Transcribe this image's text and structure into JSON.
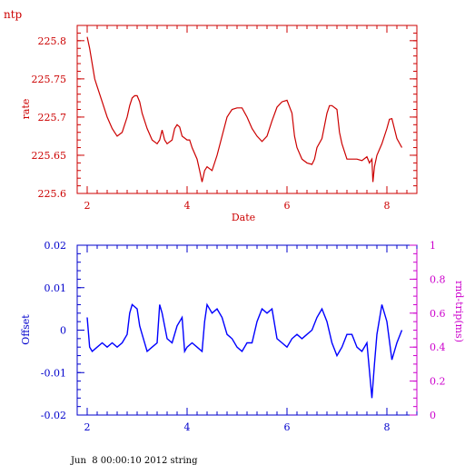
{
  "app_title": "ntp",
  "footer_text": "Jun  8 00:00:10 2012 string",
  "colors": {
    "top": "#cc0000",
    "bottom_axis": "#0000cc",
    "offset_line": "#0000ff",
    "right_axis": "#cc00cc",
    "background": "#ffffff"
  },
  "chart_data": [
    {
      "type": "line",
      "title": "",
      "xlabel": "Date",
      "ylabel": "rate",
      "xlim": [
        1.8,
        8.6
      ],
      "ylim": [
        225.6,
        225.82
      ],
      "xticks": [
        2,
        4,
        6,
        8
      ],
      "xtick_labels": [
        "2",
        "4",
        "6",
        "8"
      ],
      "yticks": [
        225.6,
        225.65,
        225.7,
        225.75,
        225.8
      ],
      "ytick_labels": [
        "225.6",
        "225.65",
        "225.7",
        "225.75",
        "225.8"
      ],
      "grid": false,
      "series": [
        {
          "x": [
            2.0,
            2.05,
            2.1,
            2.15,
            2.2,
            2.3,
            2.4,
            2.5,
            2.55,
            2.6,
            2.7,
            2.8,
            2.85,
            2.9,
            2.95,
            3.0,
            3.05,
            3.1,
            3.2,
            3.3,
            3.4,
            3.45,
            3.5,
            3.55,
            3.6,
            3.7,
            3.75,
            3.8,
            3.85,
            3.9,
            4.0,
            4.05,
            4.1,
            4.2,
            4.25,
            4.3,
            4.35,
            4.4,
            4.5,
            4.6,
            4.7,
            4.8,
            4.85,
            4.9,
            5.0,
            5.1,
            5.2,
            5.3,
            5.4,
            5.5,
            5.6,
            5.7,
            5.8,
            5.9,
            6.0,
            6.1,
            6.15,
            6.2,
            6.3,
            6.4,
            6.5,
            6.55,
            6.6,
            6.7,
            6.8,
            6.85,
            6.9,
            7.0,
            7.05,
            7.1,
            7.2,
            7.3,
            7.4,
            7.5,
            7.6,
            7.65,
            7.7,
            7.72,
            7.75,
            7.8,
            7.9,
            8.0,
            8.05,
            8.1,
            8.2,
            8.3
          ],
          "y": [
            225.805,
            225.79,
            225.77,
            225.75,
            225.74,
            225.72,
            225.7,
            225.685,
            225.68,
            225.675,
            225.68,
            225.7,
            225.715,
            225.725,
            225.728,
            225.728,
            225.72,
            225.705,
            225.685,
            225.67,
            225.665,
            225.67,
            225.683,
            225.67,
            225.665,
            225.67,
            225.685,
            225.69,
            225.687,
            225.675,
            225.67,
            225.67,
            225.66,
            225.645,
            225.63,
            225.615,
            225.63,
            225.635,
            225.63,
            225.65,
            225.675,
            225.7,
            225.705,
            225.71,
            225.712,
            225.712,
            225.7,
            225.685,
            225.675,
            225.668,
            225.675,
            225.695,
            225.713,
            225.72,
            225.722,
            225.705,
            225.675,
            225.66,
            225.645,
            225.64,
            225.638,
            225.645,
            225.66,
            225.672,
            225.705,
            225.715,
            225.715,
            225.71,
            225.68,
            225.665,
            225.645,
            225.645,
            225.645,
            225.643,
            225.648,
            225.64,
            225.645,
            225.615,
            225.635,
            225.65,
            225.665,
            225.685,
            225.697,
            225.698,
            225.672,
            225.66
          ]
        }
      ]
    },
    {
      "type": "line",
      "title": "",
      "xlabel": "",
      "ylabel": "Offset",
      "right_ylabel": "rnd-trip(ms)",
      "xlim": [
        1.8,
        8.6
      ],
      "ylim": [
        -0.02,
        0.02
      ],
      "right_ylim": [
        0,
        1
      ],
      "xticks": [
        2,
        4,
        6,
        8
      ],
      "xtick_labels": [
        "2",
        "4",
        "6",
        "8"
      ],
      "yticks": [
        -0.02,
        -0.01,
        0,
        0.01,
        0.02
      ],
      "ytick_labels": [
        "-0.02",
        "-0.01",
        "0",
        "0.01",
        "0.02"
      ],
      "right_yticks": [
        0,
        0.2,
        0.4,
        0.6,
        0.8,
        1
      ],
      "right_ytick_labels": [
        "0",
        "0.2",
        "0.4",
        "0.6",
        "0.8",
        "1"
      ],
      "grid": false,
      "series": [
        {
          "x": [
            2.0,
            2.05,
            2.1,
            2.2,
            2.3,
            2.4,
            2.5,
            2.6,
            2.7,
            2.8,
            2.85,
            2.9,
            3.0,
            3.05,
            3.1,
            3.2,
            3.3,
            3.4,
            3.45,
            3.5,
            3.6,
            3.7,
            3.8,
            3.9,
            3.95,
            4.0,
            4.1,
            4.2,
            4.3,
            4.35,
            4.4,
            4.5,
            4.6,
            4.7,
            4.8,
            4.9,
            5.0,
            5.1,
            5.2,
            5.3,
            5.4,
            5.5,
            5.6,
            5.7,
            5.8,
            5.9,
            6.0,
            6.1,
            6.2,
            6.3,
            6.4,
            6.5,
            6.6,
            6.7,
            6.8,
            6.9,
            7.0,
            7.1,
            7.2,
            7.3,
            7.4,
            7.5,
            7.6,
            7.7,
            7.75,
            7.8,
            7.9,
            8.0,
            8.1,
            8.2,
            8.3
          ],
          "y": [
            0.003,
            -0.004,
            -0.005,
            -0.004,
            -0.003,
            -0.004,
            -0.003,
            -0.004,
            -0.003,
            -0.001,
            0.004,
            0.006,
            0.005,
            0.001,
            -0.001,
            -0.005,
            -0.004,
            -0.003,
            0.006,
            0.004,
            -0.002,
            -0.003,
            0.001,
            0.003,
            -0.005,
            -0.004,
            -0.003,
            -0.004,
            -0.005,
            0.002,
            0.006,
            0.004,
            0.005,
            0.003,
            -0.001,
            -0.002,
            -0.004,
            -0.005,
            -0.003,
            -0.003,
            0.002,
            0.005,
            0.004,
            0.005,
            -0.002,
            -0.003,
            -0.004,
            -0.002,
            -0.001,
            -0.002,
            -0.001,
            0.0,
            0.003,
            0.005,
            0.002,
            -0.003,
            -0.006,
            -0.004,
            -0.001,
            -0.001,
            -0.004,
            -0.005,
            -0.003,
            -0.016,
            -0.008,
            -0.001,
            0.006,
            0.002,
            -0.007,
            -0.003,
            0.0
          ]
        }
      ]
    }
  ]
}
